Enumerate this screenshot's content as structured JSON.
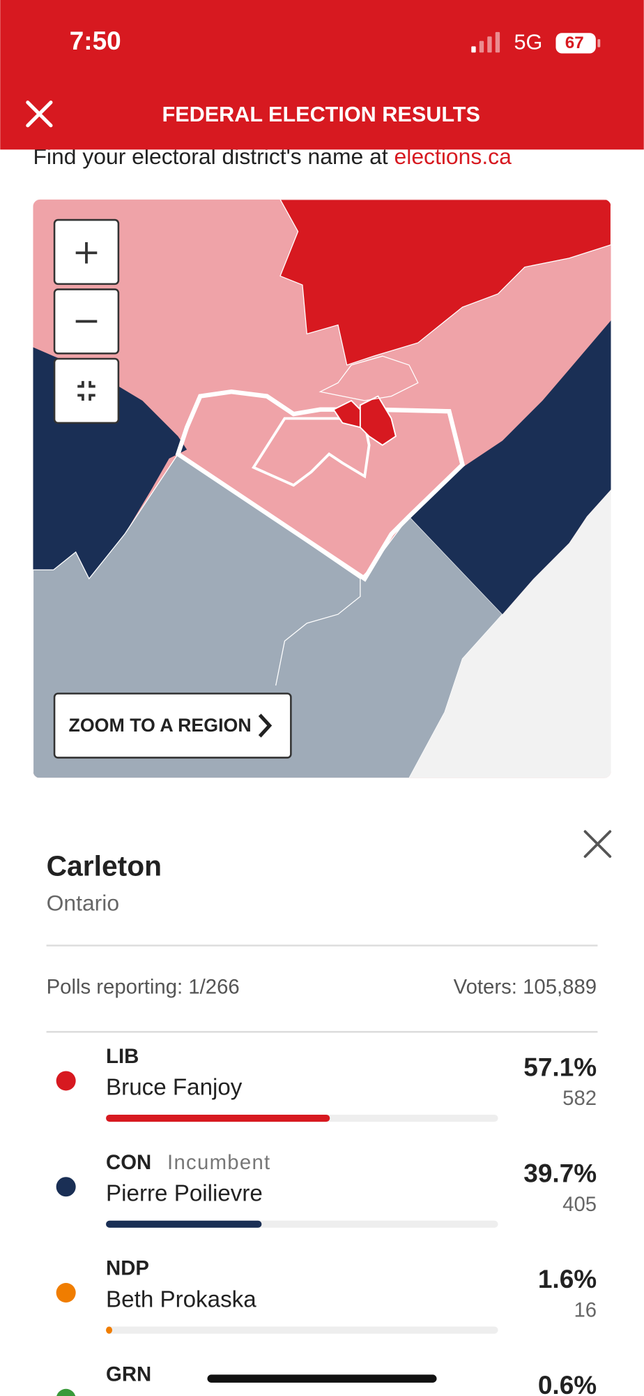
{
  "status_bar": {
    "time": "7:50",
    "network": "5G",
    "battery": "67"
  },
  "header": {
    "title": "FEDERAL ELECTION RESULTS"
  },
  "intro": {
    "text": "Find your electoral district's name at ",
    "link": "elections.ca"
  },
  "map": {
    "zoom_button": "ZOOM TO A REGION"
  },
  "district": {
    "name": "Carleton",
    "province": "Ontario",
    "polls_reporting": "Polls reporting: 1/266",
    "voters": "Voters: 105,889"
  },
  "candidates": [
    {
      "party": "LIB",
      "name": "Bruce Fanjoy",
      "color": "#d71920",
      "pct": 57.1,
      "pct_label": "57.1%",
      "votes": 582
    },
    {
      "party": "CON",
      "status": "Incumbent",
      "name": "Pierre Poilievre",
      "color": "#1a2f55",
      "pct": 39.7,
      "pct_label": "39.7%",
      "votes": 405
    },
    {
      "party": "NDP",
      "name": "Beth Prokaska",
      "color": "#f07d00",
      "pct": 1.6,
      "pct_label": "1.6%",
      "votes": 16
    },
    {
      "party": "GRN",
      "color": "#3a9a3a",
      "pct": 0.6,
      "pct_label": "0.6%"
    }
  ],
  "bar_max": 100
}
